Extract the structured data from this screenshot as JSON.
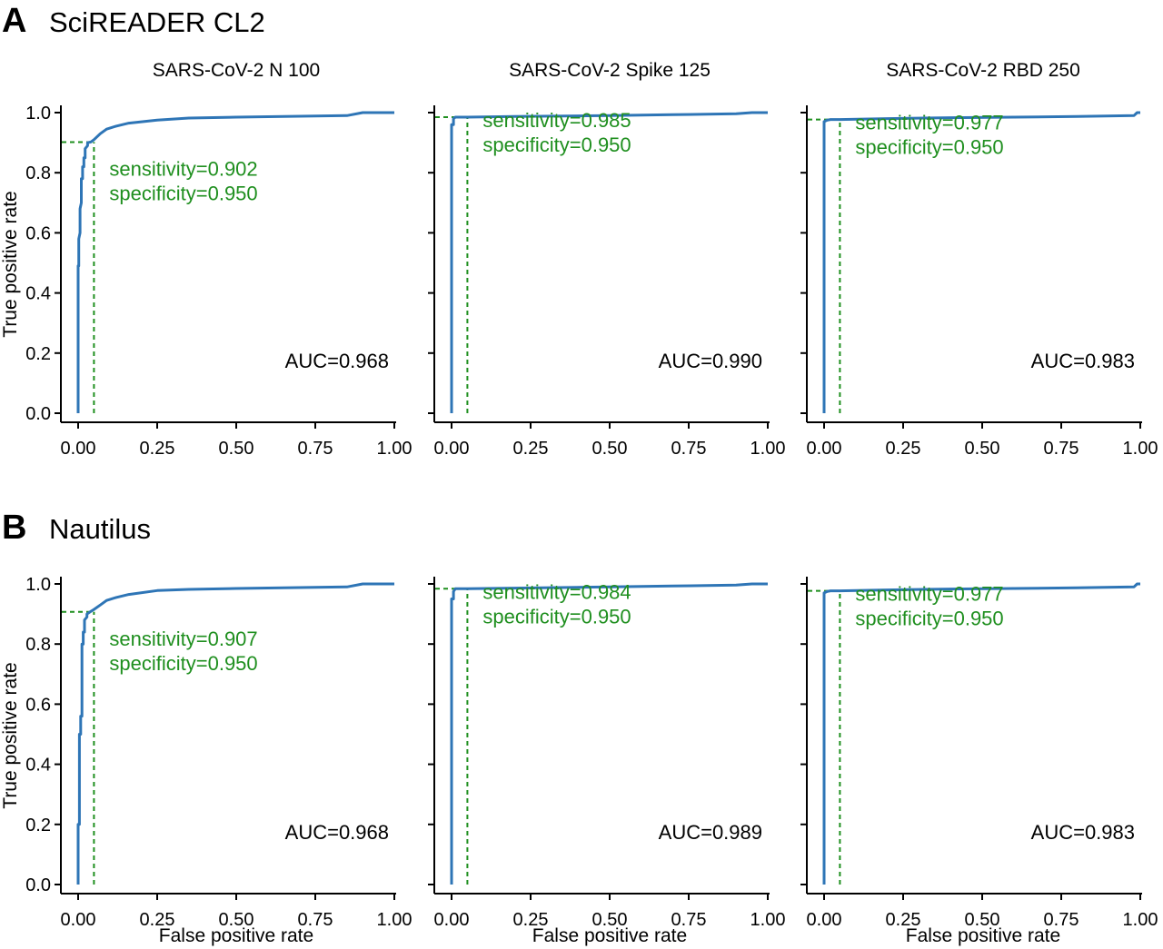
{
  "figure": {
    "panels": [
      {
        "letter": "A",
        "title": "SciREADER CL2"
      },
      {
        "letter": "B",
        "title": "Nautilus"
      }
    ],
    "xlabel": "False positive rate",
    "ylabel": "True positive rate",
    "colors": {
      "curve": "#2e75b6",
      "threshold": "#1f8f1f",
      "axis": "#000000"
    }
  },
  "chart_data": [
    {
      "type": "line",
      "panel": "A",
      "title": "SARS-CoV-2 N 100",
      "xlabel": "",
      "ylabel": "True positive rate",
      "xlim": [
        0,
        1
      ],
      "ylim": [
        0,
        1
      ],
      "x_ticks": [
        "0.00",
        "0.25",
        "0.50",
        "0.75",
        "1.00"
      ],
      "y_ticks": [
        "0.0",
        "0.2",
        "0.4",
        "0.6",
        "0.8",
        "1.0"
      ],
      "sensitivity_label": "sensitivity=0.902",
      "specificity_label": "specificity=0.950",
      "auc_label": "AUC=0.968",
      "sensitivity": 0.902,
      "fpr_threshold": 0.05,
      "series": [
        {
          "x": [
            0,
            0,
            0.002,
            0.002,
            0.006,
            0.006,
            0.01,
            0.01,
            0.014,
            0.014,
            0.018,
            0.018,
            0.022,
            0.022,
            0.03,
            0.03,
            0.04,
            0.05,
            0.07,
            0.09,
            0.12,
            0.16,
            0.25,
            0.35,
            0.5,
            0.7,
            0.85,
            0.9,
            1.0
          ],
          "y": [
            0,
            0.49,
            0.49,
            0.58,
            0.6,
            0.68,
            0.7,
            0.78,
            0.78,
            0.82,
            0.82,
            0.85,
            0.85,
            0.88,
            0.89,
            0.9,
            0.902,
            0.91,
            0.93,
            0.945,
            0.955,
            0.965,
            0.975,
            0.982,
            0.985,
            0.988,
            0.99,
            1.0,
            1.0
          ]
        }
      ]
    },
    {
      "type": "line",
      "panel": "A",
      "title": "SARS-CoV-2 Spike 125",
      "xlim": [
        0,
        1
      ],
      "ylim": [
        0,
        1
      ],
      "x_ticks": [
        "0.00",
        "0.25",
        "0.50",
        "0.75",
        "1.00"
      ],
      "y_ticks": [
        "0.0",
        "0.2",
        "0.4",
        "0.6",
        "0.8",
        "1.0"
      ],
      "sensitivity_label": "sensitivity=0.985",
      "specificity_label": "specificity=0.950",
      "auc_label": "AUC=0.990",
      "sensitivity": 0.985,
      "fpr_threshold": 0.05,
      "series": [
        {
          "x": [
            0,
            0,
            0.006,
            0.006,
            0.012,
            0.05,
            0.2,
            0.5,
            0.7,
            0.9,
            0.95,
            1.0
          ],
          "y": [
            0,
            0.96,
            0.96,
            0.98,
            0.985,
            0.985,
            0.987,
            0.99,
            0.993,
            0.996,
            1.0,
            1.0
          ]
        }
      ]
    },
    {
      "type": "line",
      "panel": "A",
      "title": "SARS-CoV-2 RBD 250",
      "xlim": [
        0,
        1
      ],
      "ylim": [
        0,
        1
      ],
      "x_ticks": [
        "0.00",
        "0.25",
        "0.50",
        "0.75",
        "1.00"
      ],
      "y_ticks": [
        "0.0",
        "0.2",
        "0.4",
        "0.6",
        "0.8",
        "1.0"
      ],
      "sensitivity_label": "sensitivity=0.977",
      "specificity_label": "specificity=0.950",
      "auc_label": "AUC=0.983",
      "sensitivity": 0.977,
      "fpr_threshold": 0.05,
      "series": [
        {
          "x": [
            0,
            0,
            0.01,
            0.02,
            0.05,
            0.2,
            0.4,
            0.6,
            0.8,
            0.98,
            0.99,
            1.0
          ],
          "y": [
            0,
            0.97,
            0.975,
            0.977,
            0.977,
            0.98,
            0.983,
            0.985,
            0.987,
            0.99,
            1.0,
            1.0
          ]
        }
      ]
    },
    {
      "type": "line",
      "panel": "B",
      "title": "",
      "xlabel": "False positive rate",
      "ylabel": "True positive rate",
      "xlim": [
        0,
        1
      ],
      "ylim": [
        0,
        1
      ],
      "x_ticks": [
        "0.00",
        "0.25",
        "0.50",
        "0.75",
        "1.00"
      ],
      "y_ticks": [
        "0.0",
        "0.2",
        "0.4",
        "0.6",
        "0.8",
        "1.0"
      ],
      "sensitivity_label": "sensitivity=0.907",
      "specificity_label": "specificity=0.950",
      "auc_label": "AUC=0.968",
      "sensitivity": 0.907,
      "fpr_threshold": 0.05,
      "series": [
        {
          "x": [
            0,
            0,
            0.004,
            0.004,
            0.008,
            0.008,
            0.012,
            0.012,
            0.016,
            0.016,
            0.02,
            0.02,
            0.028,
            0.028,
            0.038,
            0.05,
            0.07,
            0.09,
            0.12,
            0.16,
            0.25,
            0.35,
            0.5,
            0.7,
            0.85,
            0.9,
            1.0
          ],
          "y": [
            0,
            0.2,
            0.2,
            0.5,
            0.5,
            0.56,
            0.56,
            0.8,
            0.8,
            0.84,
            0.84,
            0.88,
            0.89,
            0.9,
            0.907,
            0.915,
            0.93,
            0.945,
            0.955,
            0.965,
            0.978,
            0.982,
            0.985,
            0.988,
            0.99,
            1.0,
            1.0
          ]
        }
      ]
    },
    {
      "type": "line",
      "panel": "B",
      "title": "",
      "xlabel": "False positive rate",
      "xlim": [
        0,
        1
      ],
      "ylim": [
        0,
        1
      ],
      "x_ticks": [
        "0.00",
        "0.25",
        "0.50",
        "0.75",
        "1.00"
      ],
      "y_ticks": [
        "0.0",
        "0.2",
        "0.4",
        "0.6",
        "0.8",
        "1.0"
      ],
      "sensitivity_label": "sensitivity=0.984",
      "specificity_label": "specificity=0.950",
      "auc_label": "AUC=0.989",
      "sensitivity": 0.984,
      "fpr_threshold": 0.05,
      "series": [
        {
          "x": [
            0,
            0,
            0.006,
            0.006,
            0.012,
            0.05,
            0.2,
            0.5,
            0.7,
            0.9,
            0.95,
            1.0
          ],
          "y": [
            0,
            0.95,
            0.95,
            0.975,
            0.984,
            0.984,
            0.986,
            0.99,
            0.993,
            0.996,
            1.0,
            1.0
          ]
        }
      ]
    },
    {
      "type": "line",
      "panel": "B",
      "title": "",
      "xlabel": "False positive rate",
      "xlim": [
        0,
        1
      ],
      "ylim": [
        0,
        1
      ],
      "x_ticks": [
        "0.00",
        "0.25",
        "0.50",
        "0.75",
        "1.00"
      ],
      "y_ticks": [
        "0.0",
        "0.2",
        "0.4",
        "0.6",
        "0.8",
        "1.0"
      ],
      "sensitivity_label": "sensitivity=0.977",
      "specificity_label": "specificity=0.950",
      "auc_label": "AUC=0.983",
      "sensitivity": 0.977,
      "fpr_threshold": 0.05,
      "series": [
        {
          "x": [
            0,
            0,
            0.01,
            0.02,
            0.05,
            0.2,
            0.4,
            0.6,
            0.8,
            0.98,
            0.99,
            1.0
          ],
          "y": [
            0,
            0.97,
            0.975,
            0.977,
            0.977,
            0.98,
            0.983,
            0.985,
            0.987,
            0.99,
            1.0,
            1.0
          ]
        }
      ]
    }
  ]
}
